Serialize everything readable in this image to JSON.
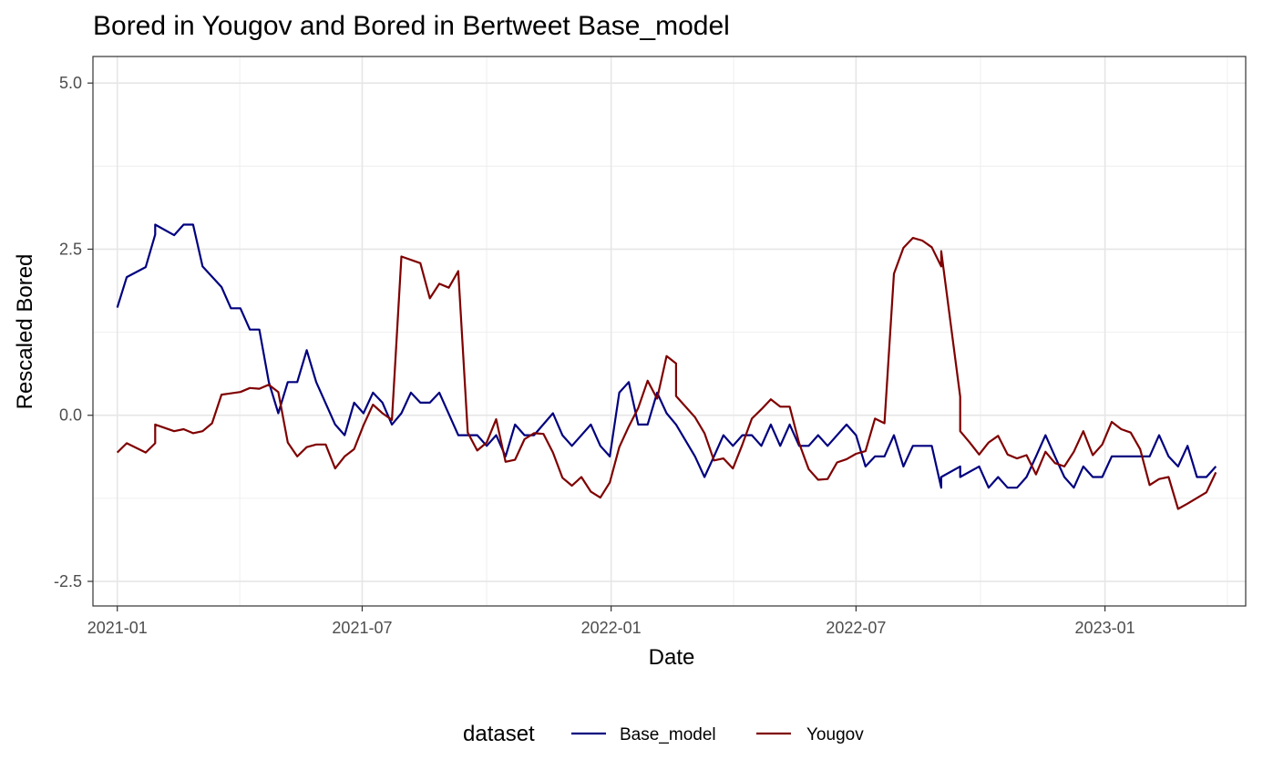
{
  "chart_data": {
    "type": "line",
    "title": "Bored  in Yougov and  Bored  in Bertweet  Base_model",
    "xlabel": "Date",
    "ylabel": "Rescaled  Bored",
    "x_ticks": [
      "2021-01",
      "2021-07",
      "2022-01",
      "2022-07",
      "2023-01"
    ],
    "y_ticks": [
      "-2.5",
      "0.0",
      "2.5",
      "5.0"
    ],
    "ylim": [
      -2.87,
      5.4
    ],
    "xlim": [
      "2020-12-14",
      "2023-04-15"
    ],
    "grid": true,
    "legend": {
      "title": "dataset",
      "position": "bottom"
    },
    "series": [
      {
        "name": "Base_model",
        "color": "#00007f",
        "points": [
          [
            "2021-01-01",
            1.62
          ],
          [
            "2021-01-08",
            2.08
          ],
          [
            "2021-01-22",
            2.23
          ],
          [
            "2021-01-29",
            2.72
          ],
          [
            "2021-01-29",
            2.87
          ],
          [
            "2021-02-12",
            2.71
          ],
          [
            "2021-02-19",
            2.87
          ],
          [
            "2021-02-26",
            2.87
          ],
          [
            "2021-03-05",
            2.24
          ],
          [
            "2021-03-19",
            1.93
          ],
          [
            "2021-03-26",
            1.61
          ],
          [
            "2021-04-02",
            1.61
          ],
          [
            "2021-04-09",
            1.29
          ],
          [
            "2021-04-16",
            1.29
          ],
          [
            "2021-04-23",
            0.5
          ],
          [
            "2021-04-30",
            0.03
          ],
          [
            "2021-05-07",
            0.5
          ],
          [
            "2021-05-14",
            0.5
          ],
          [
            "2021-05-21",
            0.98
          ],
          [
            "2021-05-28",
            0.5
          ],
          [
            "2021-06-11",
            -0.14
          ],
          [
            "2021-06-18",
            -0.3
          ],
          [
            "2021-06-25",
            0.19
          ],
          [
            "2021-07-02",
            0.03
          ],
          [
            "2021-07-09",
            0.34
          ],
          [
            "2021-07-16",
            0.19
          ],
          [
            "2021-07-23",
            -0.14
          ],
          [
            "2021-07-30",
            0.03
          ],
          [
            "2021-08-06",
            0.34
          ],
          [
            "2021-08-13",
            0.19
          ],
          [
            "2021-08-20",
            0.19
          ],
          [
            "2021-08-27",
            0.34
          ],
          [
            "2021-09-10",
            -0.3
          ],
          [
            "2021-09-17",
            -0.3
          ],
          [
            "2021-09-24",
            -0.3
          ],
          [
            "2021-10-01",
            -0.46
          ],
          [
            "2021-10-08",
            -0.3
          ],
          [
            "2021-10-15",
            -0.62
          ],
          [
            "2021-10-22",
            -0.14
          ],
          [
            "2021-10-29",
            -0.3
          ],
          [
            "2021-11-05",
            -0.3
          ],
          [
            "2021-11-19",
            0.03
          ],
          [
            "2021-11-26",
            -0.3
          ],
          [
            "2021-12-03",
            -0.46
          ],
          [
            "2021-12-17",
            -0.14
          ],
          [
            "2021-12-24",
            -0.46
          ],
          [
            "2021-12-31",
            -0.62
          ],
          [
            "2022-01-07",
            0.34
          ],
          [
            "2022-01-14",
            0.5
          ],
          [
            "2022-01-21",
            -0.14
          ],
          [
            "2022-01-28",
            -0.14
          ],
          [
            "2022-02-04",
            0.34
          ],
          [
            "2022-02-11",
            0.03
          ],
          [
            "2022-02-18",
            -0.14
          ],
          [
            "2022-03-04",
            -0.62
          ],
          [
            "2022-03-11",
            -0.93
          ],
          [
            "2022-03-18",
            -0.62
          ],
          [
            "2022-03-25",
            -0.3
          ],
          [
            "2022-04-01",
            -0.46
          ],
          [
            "2022-04-08",
            -0.3
          ],
          [
            "2022-04-15",
            -0.3
          ],
          [
            "2022-04-22",
            -0.46
          ],
          [
            "2022-04-29",
            -0.14
          ],
          [
            "2022-05-06",
            -0.46
          ],
          [
            "2022-05-13",
            -0.14
          ],
          [
            "2022-05-20",
            -0.46
          ],
          [
            "2022-05-27",
            -0.46
          ],
          [
            "2022-06-03",
            -0.3
          ],
          [
            "2022-06-10",
            -0.46
          ],
          [
            "2022-06-24",
            -0.14
          ],
          [
            "2022-07-01",
            -0.3
          ],
          [
            "2022-07-08",
            -0.77
          ],
          [
            "2022-07-15",
            -0.62
          ],
          [
            "2022-07-22",
            -0.62
          ],
          [
            "2022-07-29",
            -0.3
          ],
          [
            "2022-08-05",
            -0.77
          ],
          [
            "2022-08-12",
            -0.46
          ],
          [
            "2022-08-26",
            -0.46
          ],
          [
            "2022-09-02",
            -1.09
          ],
          [
            "2022-09-02",
            -0.93
          ],
          [
            "2022-09-16",
            -0.77
          ],
          [
            "2022-09-16",
            -0.93
          ],
          [
            "2022-09-30",
            -0.77
          ],
          [
            "2022-10-07",
            -1.09
          ],
          [
            "2022-10-14",
            -0.93
          ],
          [
            "2022-10-21",
            -1.09
          ],
          [
            "2022-10-28",
            -1.09
          ],
          [
            "2022-11-04",
            -0.93
          ],
          [
            "2022-11-11",
            -0.62
          ],
          [
            "2022-11-18",
            -0.3
          ],
          [
            "2022-11-25",
            -0.62
          ],
          [
            "2022-12-02",
            -0.93
          ],
          [
            "2022-12-09",
            -1.09
          ],
          [
            "2022-12-16",
            -0.77
          ],
          [
            "2022-12-23",
            -0.93
          ],
          [
            "2022-12-30",
            -0.93
          ],
          [
            "2023-01-06",
            -0.62
          ],
          [
            "2023-01-13",
            -0.62
          ],
          [
            "2023-01-27",
            -0.62
          ],
          [
            "2023-02-03",
            -0.62
          ],
          [
            "2023-02-10",
            -0.3
          ],
          [
            "2023-02-17",
            -0.62
          ],
          [
            "2023-02-24",
            -0.77
          ],
          [
            "2023-03-03",
            -0.46
          ],
          [
            "2023-03-10",
            -0.93
          ],
          [
            "2023-03-17",
            -0.93
          ],
          [
            "2023-03-24",
            -0.77
          ]
        ]
      },
      {
        "name": "Yougov",
        "color": "#7f0000",
        "points": [
          [
            "2021-01-01",
            -0.56
          ],
          [
            "2021-01-08",
            -0.42
          ],
          [
            "2021-01-22",
            -0.56
          ],
          [
            "2021-01-29",
            -0.42
          ],
          [
            "2021-01-29",
            -0.14
          ],
          [
            "2021-02-12",
            -0.24
          ],
          [
            "2021-02-19",
            -0.21
          ],
          [
            "2021-02-26",
            -0.27
          ],
          [
            "2021-03-05",
            -0.24
          ],
          [
            "2021-03-12",
            -0.12
          ],
          [
            "2021-03-19",
            0.31
          ],
          [
            "2021-04-02",
            0.35
          ],
          [
            "2021-04-09",
            0.41
          ],
          [
            "2021-04-16",
            0.4
          ],
          [
            "2021-04-23",
            0.46
          ],
          [
            "2021-04-30",
            0.35
          ],
          [
            "2021-05-07",
            -0.41
          ],
          [
            "2021-05-14",
            -0.62
          ],
          [
            "2021-05-21",
            -0.48
          ],
          [
            "2021-05-28",
            -0.44
          ],
          [
            "2021-06-04",
            -0.44
          ],
          [
            "2021-06-11",
            -0.8
          ],
          [
            "2021-06-18",
            -0.62
          ],
          [
            "2021-06-25",
            -0.51
          ],
          [
            "2021-07-02",
            -0.15
          ],
          [
            "2021-07-09",
            0.16
          ],
          [
            "2021-07-16",
            0.03
          ],
          [
            "2021-07-23",
            -0.07
          ],
          [
            "2021-07-30",
            2.39
          ],
          [
            "2021-08-13",
            2.29
          ],
          [
            "2021-08-20",
            1.76
          ],
          [
            "2021-08-27",
            1.98
          ],
          [
            "2021-09-03",
            1.92
          ],
          [
            "2021-09-10",
            2.17
          ],
          [
            "2021-09-17",
            -0.26
          ],
          [
            "2021-09-24",
            -0.53
          ],
          [
            "2021-10-01",
            -0.41
          ],
          [
            "2021-10-08",
            -0.06
          ],
          [
            "2021-10-15",
            -0.7
          ],
          [
            "2021-10-22",
            -0.67
          ],
          [
            "2021-10-29",
            -0.36
          ],
          [
            "2021-11-05",
            -0.27
          ],
          [
            "2021-11-12",
            -0.28
          ],
          [
            "2021-11-19",
            -0.56
          ],
          [
            "2021-11-26",
            -0.94
          ],
          [
            "2021-12-03",
            -1.06
          ],
          [
            "2021-12-10",
            -0.93
          ],
          [
            "2021-12-17",
            -1.15
          ],
          [
            "2021-12-24",
            -1.24
          ],
          [
            "2021-12-31",
            -1.01
          ],
          [
            "2022-01-07",
            -0.48
          ],
          [
            "2022-01-14",
            -0.17
          ],
          [
            "2022-01-21",
            0.11
          ],
          [
            "2022-01-28",
            0.52
          ],
          [
            "2022-02-04",
            0.25
          ],
          [
            "2022-02-11",
            0.89
          ],
          [
            "2022-02-18",
            0.78
          ],
          [
            "2022-02-18",
            0.29
          ],
          [
            "2022-03-04",
            -0.03
          ],
          [
            "2022-03-11",
            -0.27
          ],
          [
            "2022-03-18",
            -0.68
          ],
          [
            "2022-03-25",
            -0.65
          ],
          [
            "2022-04-01",
            -0.8
          ],
          [
            "2022-04-08",
            -0.44
          ],
          [
            "2022-04-15",
            -0.05
          ],
          [
            "2022-04-22",
            0.09
          ],
          [
            "2022-04-29",
            0.24
          ],
          [
            "2022-05-06",
            0.13
          ],
          [
            "2022-05-13",
            0.13
          ],
          [
            "2022-05-20",
            -0.42
          ],
          [
            "2022-05-27",
            -0.81
          ],
          [
            "2022-06-03",
            -0.97
          ],
          [
            "2022-06-10",
            -0.96
          ],
          [
            "2022-06-17",
            -0.71
          ],
          [
            "2022-06-24",
            -0.66
          ],
          [
            "2022-07-01",
            -0.58
          ],
          [
            "2022-07-08",
            -0.54
          ],
          [
            "2022-07-15",
            -0.05
          ],
          [
            "2022-07-22",
            -0.12
          ],
          [
            "2022-07-29",
            2.13
          ],
          [
            "2022-08-05",
            2.52
          ],
          [
            "2022-08-12",
            2.67
          ],
          [
            "2022-08-19",
            2.63
          ],
          [
            "2022-08-26",
            2.53
          ],
          [
            "2022-09-02",
            2.24
          ],
          [
            "2022-09-02",
            2.47
          ],
          [
            "2022-09-16",
            0.28
          ],
          [
            "2022-09-16",
            -0.24
          ],
          [
            "2022-09-23",
            -0.41
          ],
          [
            "2022-09-30",
            -0.59
          ],
          [
            "2022-10-07",
            -0.41
          ],
          [
            "2022-10-14",
            -0.31
          ],
          [
            "2022-10-21",
            -0.59
          ],
          [
            "2022-10-28",
            -0.65
          ],
          [
            "2022-11-04",
            -0.6
          ],
          [
            "2022-11-11",
            -0.89
          ],
          [
            "2022-11-18",
            -0.55
          ],
          [
            "2022-11-25",
            -0.72
          ],
          [
            "2022-12-02",
            -0.77
          ],
          [
            "2022-12-09",
            -0.55
          ],
          [
            "2022-12-16",
            -0.24
          ],
          [
            "2022-12-23",
            -0.6
          ],
          [
            "2022-12-30",
            -0.44
          ],
          [
            "2023-01-06",
            -0.1
          ],
          [
            "2023-01-13",
            -0.21
          ],
          [
            "2023-01-20",
            -0.26
          ],
          [
            "2023-01-27",
            -0.51
          ],
          [
            "2023-02-03",
            -1.05
          ],
          [
            "2023-02-10",
            -0.96
          ],
          [
            "2023-02-17",
            -0.93
          ],
          [
            "2023-02-24",
            -1.41
          ],
          [
            "2023-03-03",
            -1.33
          ],
          [
            "2023-03-17",
            -1.16
          ],
          [
            "2023-03-24",
            -0.86
          ]
        ]
      }
    ]
  }
}
